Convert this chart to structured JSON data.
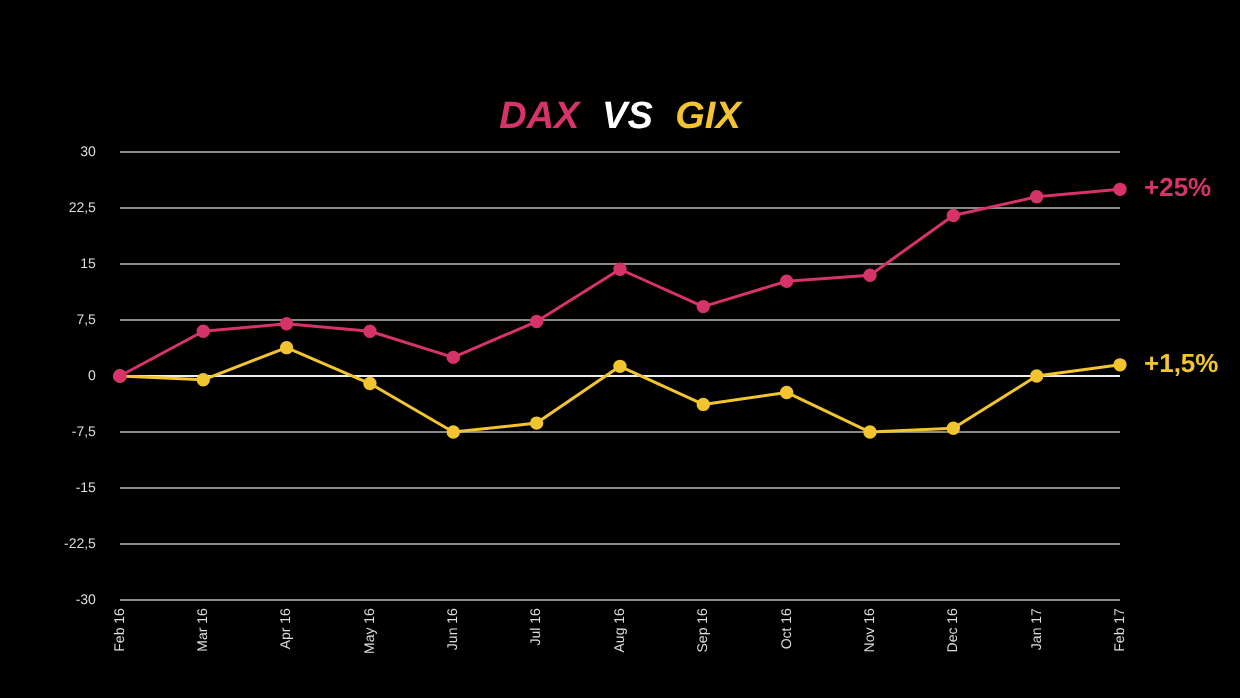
{
  "chart_data": {
    "type": "line",
    "title": "DAX VS GIX",
    "categories": [
      "Feb 16",
      "Mar 16",
      "Apr 16",
      "May 16",
      "Jun 16",
      "Jul 16",
      "Aug 16",
      "Sep 16",
      "Oct 16",
      "Nov 16",
      "Dec 16",
      "Jan 17",
      "Feb 17"
    ],
    "series": [
      {
        "color": "#d6336c",
        "values": [
          0,
          6,
          7,
          6,
          2.5,
          7.3,
          14.3,
          9.3,
          12.7,
          13.5,
          21.5,
          24,
          25
        ]
      },
      {
        "color": "#f2c530",
        "values": [
          0,
          -0.5,
          3.8,
          -1,
          -7.5,
          -6.3,
          1.3,
          -3.8,
          -2.2,
          -7.5,
          -7,
          0,
          1.5
        ]
      }
    ],
    "ylim": [
      -30,
      30
    ],
    "yticks": [
      {
        "value": -30,
        "label": "-30"
      },
      {
        "value": -22.5,
        "label": "-22,5"
      },
      {
        "value": -15,
        "label": "-15"
      },
      {
        "value": -7.5,
        "label": "-7,5"
      },
      0,
      {
        "value": 7.5,
        "label": "7,5"
      },
      15,
      {
        "value": 22.5,
        "label": "22,5"
      },
      30
    ],
    "grid": "y",
    "legend": false,
    "marker": "circle",
    "line_style": "solid",
    "annotations": [
      {
        "text": "+25%",
        "x": "Feb 17",
        "y": 25
      },
      {
        "text": "+1,5%",
        "x": "Feb 17",
        "y": 1.5
      }
    ]
  }
}
